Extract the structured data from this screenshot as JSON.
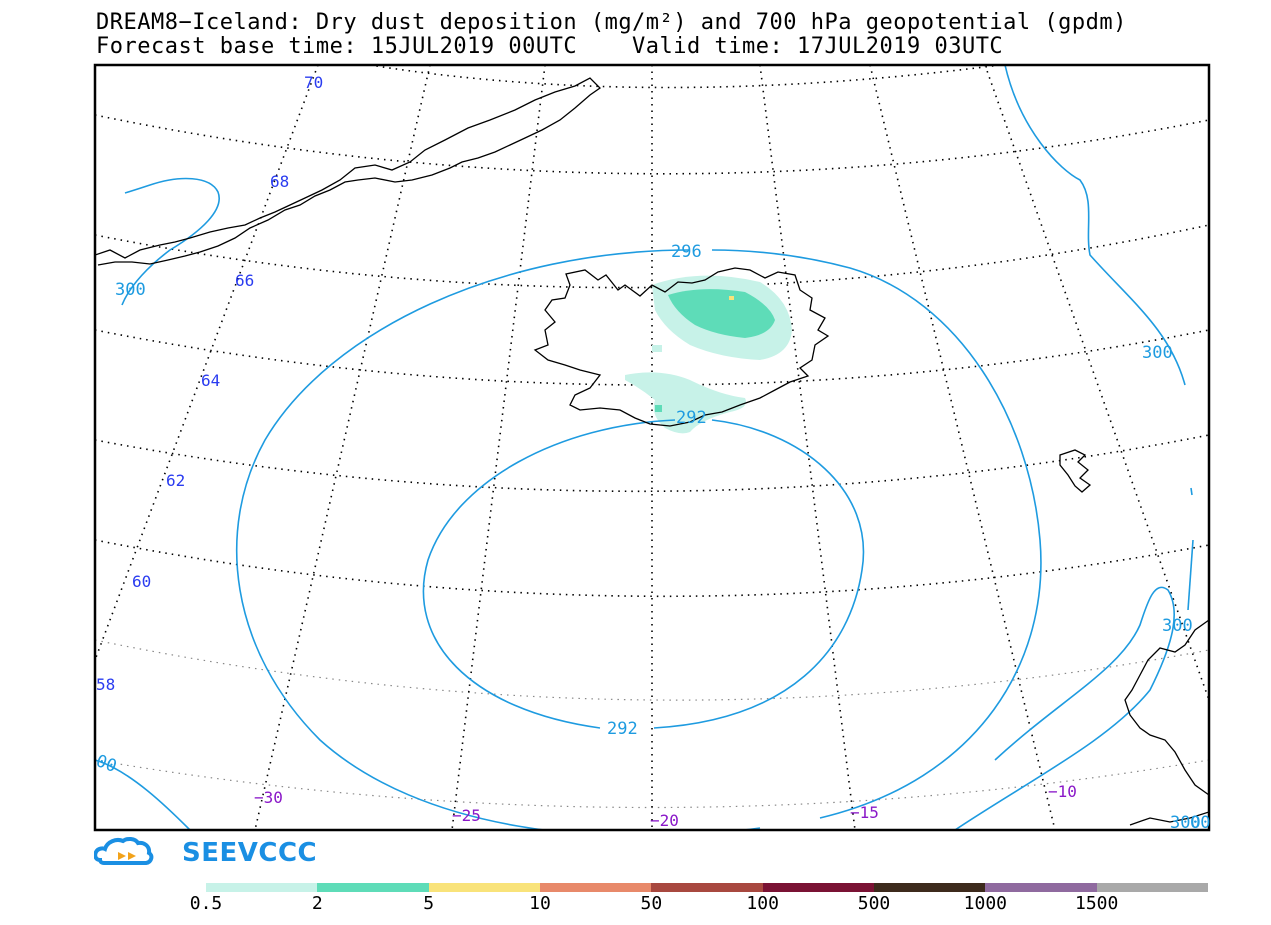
{
  "title_line1": "DREAM8−Iceland: Dry dust deposition (mg/m²) and 700 hPa geopotential (gpdm)",
  "title_line2": "Forecast base time: 15JUL2019 00UTC    Valid time: 17JUL2019 03UTC",
  "logo_text": "SEEVCCC",
  "colors": {
    "contour": "#1e9be0",
    "lat_label": "#2a3cf0",
    "lon_label": "#8a18c8",
    "coast": "#000000",
    "frame": "#000000"
  },
  "map": {
    "lat_labels": [
      "70",
      "68",
      "66",
      "64",
      "62",
      "60",
      "58"
    ],
    "lon_labels": [
      "−30",
      "−25",
      "−20",
      "−15",
      "−10"
    ],
    "contour_labels": [
      "296",
      "300",
      "292",
      "300",
      "292",
      "300",
      "300",
      "00",
      "00"
    ]
  },
  "colorbar": {
    "colors": [
      "#c7f2e8",
      "#5edcb8",
      "#f9e37a",
      "#e8896a",
      "#a8483f",
      "#7a1234",
      "#3d2a1c",
      "#8f6a9f",
      "#a9a9a9"
    ],
    "labels": [
      "0.5",
      "2",
      "5",
      "10",
      "50",
      "100",
      "500",
      "1000",
      "1500"
    ]
  }
}
